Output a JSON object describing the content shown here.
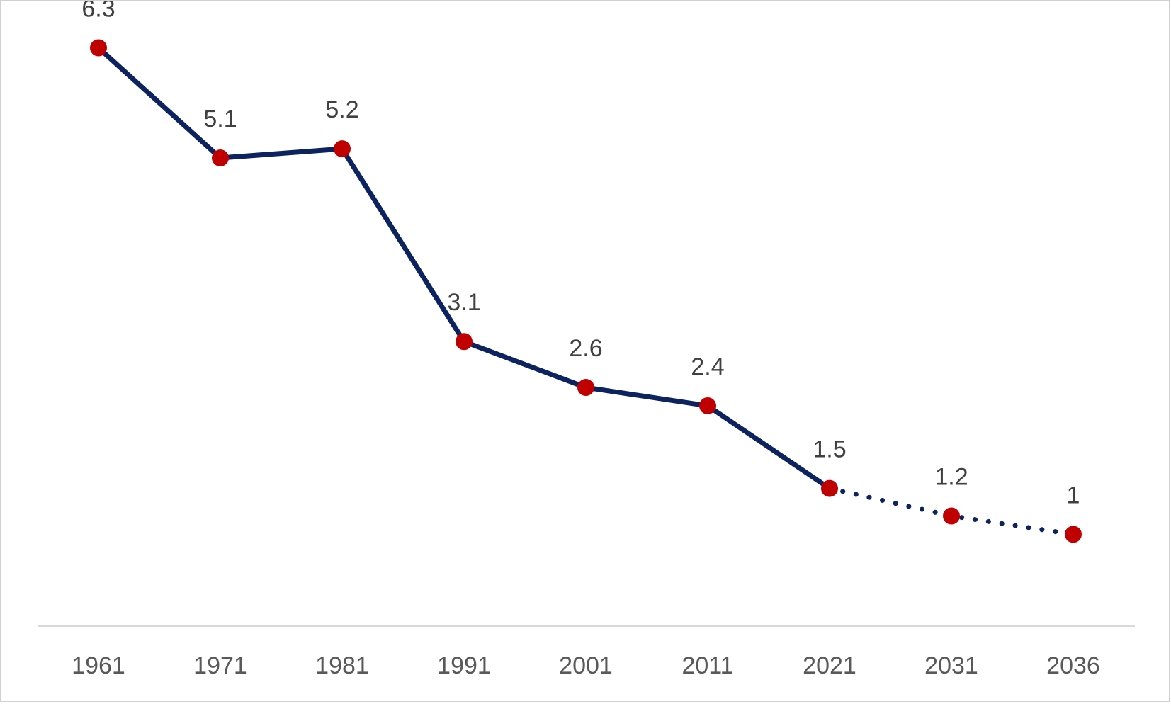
{
  "chart_data": {
    "type": "line",
    "title": "",
    "xlabel": "",
    "ylabel": "",
    "categories": [
      "1961",
      "1971",
      "1981",
      "1991",
      "2001",
      "2011",
      "2021",
      "2031",
      "2036"
    ],
    "values": [
      6.3,
      5.1,
      5.2,
      3.1,
      2.6,
      2.4,
      1.5,
      1.2,
      1
    ],
    "data_labels": [
      "6.3",
      "5.1",
      "5.2",
      "3.1",
      "2.6",
      "2.4",
      "1.5",
      "1.2",
      "1"
    ],
    "solid_segment_end_index": 6,
    "projected_segment": {
      "line_style": "dotted",
      "from_index": 6,
      "to_index": 8
    },
    "ylim": [
      0,
      7
    ],
    "grid": false,
    "legend": "none",
    "colors": {
      "line": "#0d2360",
      "marker": "#c00000",
      "axis": "#d9d9d9",
      "tick_text": "#595959",
      "label_text": "#404040"
    }
  }
}
